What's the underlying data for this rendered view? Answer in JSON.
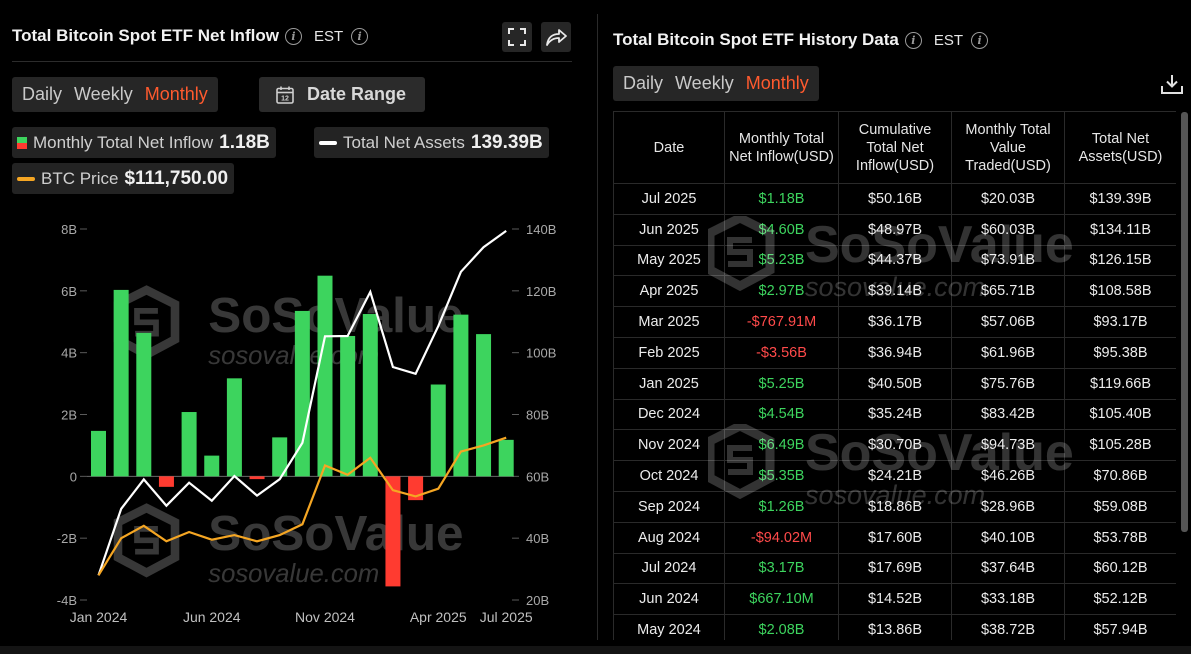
{
  "left": {
    "title": "Total Bitcoin Spot ETF Net Inflow",
    "timezone": "EST",
    "tabs": [
      {
        "label": "Daily",
        "active": false
      },
      {
        "label": "Weekly",
        "active": false
      },
      {
        "label": "Monthly",
        "active": true
      }
    ],
    "date_range_label": "Date Range",
    "legend": [
      {
        "name": "Monthly Total Net Inflow",
        "value": "1.18B"
      },
      {
        "name": "Total Net Assets",
        "value": "139.39B"
      },
      {
        "name": "BTC Price",
        "value": "$111,750.00"
      }
    ]
  },
  "right": {
    "title": "Total Bitcoin Spot ETF History Data",
    "timezone": "EST",
    "tabs": [
      {
        "label": "Daily",
        "active": false
      },
      {
        "label": "Weekly",
        "active": false
      },
      {
        "label": "Monthly",
        "active": true
      }
    ],
    "columns": [
      "Date",
      "Monthly Total Net Inflow(USD)",
      "Cumulative Total Net Inflow(USD)",
      "Monthly Total Value Traded(USD)",
      "Total Net Assets(USD)"
    ],
    "rows": [
      [
        "Jul 2025",
        "$1.18B",
        "$50.16B",
        "$20.03B",
        "$139.39B"
      ],
      [
        "Jun 2025",
        "$4.60B",
        "$48.97B",
        "$60.03B",
        "$134.11B"
      ],
      [
        "May 2025",
        "$5.23B",
        "$44.37B",
        "$73.91B",
        "$126.15B"
      ],
      [
        "Apr 2025",
        "$2.97B",
        "$39.14B",
        "$65.71B",
        "$108.58B"
      ],
      [
        "Mar 2025",
        "-$767.91M",
        "$36.17B",
        "$57.06B",
        "$93.17B"
      ],
      [
        "Feb 2025",
        "-$3.56B",
        "$36.94B",
        "$61.96B",
        "$95.38B"
      ],
      [
        "Jan 2025",
        "$5.25B",
        "$40.50B",
        "$75.76B",
        "$119.66B"
      ],
      [
        "Dec 2024",
        "$4.54B",
        "$35.24B",
        "$83.42B",
        "$105.40B"
      ],
      [
        "Nov 2024",
        "$6.49B",
        "$30.70B",
        "$94.73B",
        "$105.28B"
      ],
      [
        "Oct 2024",
        "$5.35B",
        "$24.21B",
        "$46.26B",
        "$70.86B"
      ],
      [
        "Sep 2024",
        "$1.26B",
        "$18.86B",
        "$28.96B",
        "$59.08B"
      ],
      [
        "Aug 2024",
        "-$94.02M",
        "$17.60B",
        "$40.10B",
        "$53.78B"
      ],
      [
        "Jul 2024",
        "$3.17B",
        "$17.69B",
        "$37.64B",
        "$60.12B"
      ],
      [
        "Jun 2024",
        "$667.10M",
        "$14.52B",
        "$33.18B",
        "$52.12B"
      ],
      [
        "May 2024",
        "$2.08B",
        "$13.86B",
        "$38.72B",
        "$57.94B"
      ]
    ]
  },
  "watermark": {
    "brand": "SoSoValue",
    "url": "sosovalue.com"
  },
  "colors": {
    "accent": "#ff5a2e",
    "positive": "#3dd45e",
    "negative": "#ff3b30",
    "assets_line": "#ffffff",
    "price_line": "#f5a623"
  },
  "chart_data": {
    "type": "bar",
    "x": [
      "Jan 2024",
      "Feb 2024",
      "Mar 2024",
      "Apr 2024",
      "May 2024",
      "Jun 2024",
      "Jul 2024",
      "Aug 2024",
      "Sep 2024",
      "Oct 2024",
      "Nov 2024",
      "Dec 2024",
      "Jan 2025",
      "Feb 2025",
      "Mar 2025",
      "Apr 2025",
      "May 2025",
      "Jun 2025",
      "Jul 2025"
    ],
    "x_tick_labels": [
      "Jan 2024",
      "Jun 2024",
      "Nov 2024",
      "Apr 2025",
      "Jul 2025"
    ],
    "series": [
      {
        "name": "Monthly Total Net Inflow",
        "type": "bar",
        "axis": "left",
        "values": [
          1.47,
          6.03,
          4.64,
          -0.34,
          2.08,
          0.67,
          3.17,
          -0.09,
          1.26,
          5.35,
          6.49,
          4.54,
          5.25,
          -3.56,
          -0.77,
          2.97,
          5.23,
          4.6,
          1.18
        ]
      },
      {
        "name": "Total Net Assets",
        "type": "line",
        "axis": "right",
        "values": [
          28.0,
          49.5,
          59.0,
          50.5,
          57.94,
          52.12,
          60.12,
          53.78,
          59.08,
          70.86,
          105.28,
          105.4,
          119.66,
          95.38,
          93.17,
          108.58,
          126.15,
          134.11,
          139.39
        ]
      },
      {
        "name": "BTC Price",
        "type": "line",
        "axis": "right",
        "values": [
          28.0,
          40.0,
          44.0,
          39.0,
          42.0,
          39.5,
          41.0,
          39.0,
          41.0,
          44.5,
          63.5,
          60.5,
          66.0,
          55.5,
          53.5,
          56.0,
          68.0,
          70.0,
          72.5
        ]
      }
    ],
    "y_left": {
      "ticks": [
        "8B",
        "6B",
        "4B",
        "2B",
        "0",
        "-2B",
        "-4B"
      ],
      "range": [
        -4,
        8
      ]
    },
    "y_right": {
      "ticks": [
        "140B",
        "120B",
        "100B",
        "80B",
        "60B",
        "40B",
        "20B"
      ],
      "range": [
        20,
        140
      ]
    },
    "grid": false,
    "legend_placement": "top-left"
  }
}
